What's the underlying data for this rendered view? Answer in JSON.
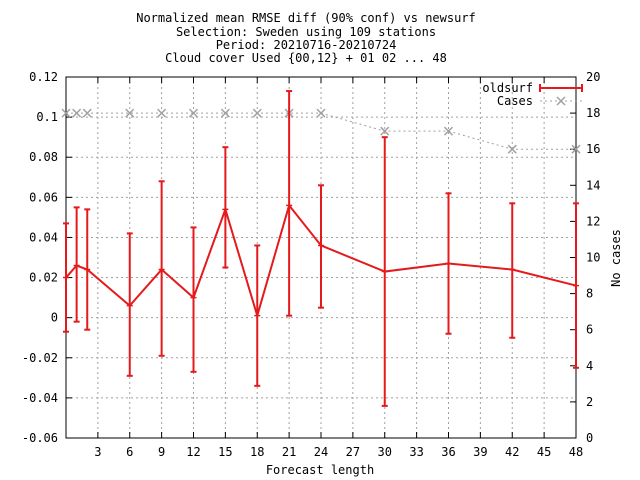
{
  "chart_data": {
    "type": "line",
    "title_lines": [
      "Normalized mean RMSE diff (90% conf) vs newsurf",
      "Selection: Sweden using   109 stations",
      "Period: 20210716-20210724",
      "Cloud cover   Used {00,12} + 01 02 ... 48"
    ],
    "xlabel": "Forecast length",
    "ylabel": "",
    "y2label": "No cases",
    "xlim": [
      0,
      48
    ],
    "ylim": [
      -0.06,
      0.12
    ],
    "y2lim": [
      0,
      20
    ],
    "xticks": [
      3,
      6,
      9,
      12,
      15,
      18,
      21,
      24,
      27,
      30,
      33,
      36,
      39,
      42,
      45,
      48
    ],
    "yticks": [
      -0.06,
      -0.04,
      -0.02,
      0,
      0.02,
      0.04,
      0.06,
      0.08,
      0.1,
      0.12
    ],
    "ytick_labels": [
      "-0.06",
      "-0.04",
      "-0.02",
      "0",
      "0.02",
      "0.04",
      "0.06",
      "0.08",
      "0.1",
      "0.12"
    ],
    "y2ticks": [
      0,
      2,
      4,
      6,
      8,
      10,
      12,
      14,
      16,
      18,
      20
    ],
    "grid": true,
    "legend_position": "top-right",
    "series": [
      {
        "name": "oldsurf",
        "color": "#e41a1c",
        "axis": "left",
        "x": [
          0,
          1,
          2,
          6,
          9,
          12,
          15,
          18,
          21,
          24,
          30,
          36,
          42,
          48
        ],
        "y": [
          0.02,
          0.026,
          0.024,
          0.006,
          0.024,
          0.01,
          0.054,
          0.001,
          0.056,
          0.036,
          0.023,
          0.027,
          0.024,
          0.016
        ],
        "y_low": [
          -0.007,
          -0.002,
          -0.006,
          -0.029,
          -0.019,
          -0.027,
          0.025,
          -0.034,
          0.001,
          0.005,
          -0.044,
          -0.008,
          -0.01,
          -0.025
        ],
        "y_high": [
          0.047,
          0.055,
          0.054,
          0.042,
          0.068,
          0.045,
          0.085,
          0.036,
          0.113,
          0.066,
          0.09,
          0.062,
          0.057,
          0.057
        ]
      },
      {
        "name": "Cases",
        "color": "#a0a0a0",
        "axis": "right",
        "x": [
          0,
          1,
          2,
          6,
          9,
          12,
          15,
          18,
          21,
          24,
          30,
          36,
          42,
          48
        ],
        "y": [
          18,
          18,
          18,
          18,
          18,
          18,
          18,
          18,
          18,
          18,
          17,
          17,
          16,
          16
        ]
      }
    ]
  }
}
